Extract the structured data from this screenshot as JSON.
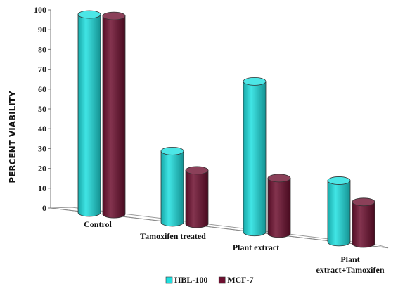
{
  "chart_data": {
    "type": "bar",
    "title": "",
    "xlabel": "",
    "ylabel": "PERCENT VIABILITY",
    "ylim": [
      0,
      100
    ],
    "yticks": [
      0,
      10,
      20,
      30,
      40,
      50,
      60,
      70,
      80,
      90,
      100
    ],
    "categories": [
      [
        "Control"
      ],
      [
        "Tamoxifen treated"
      ],
      [
        "Plant extract"
      ],
      [
        "Plant",
        "extract+Tamoxifen"
      ]
    ],
    "series": [
      {
        "name": "HBL-100",
        "color": "#1fe0e0",
        "values": [
          100,
          36,
          76,
          31
        ]
      },
      {
        "name": "MCF-7",
        "color": "#6e1030",
        "values": [
          100,
          27,
          28,
          21
        ]
      }
    ],
    "legend": "bottom-center",
    "style": "3d-cylinder"
  }
}
